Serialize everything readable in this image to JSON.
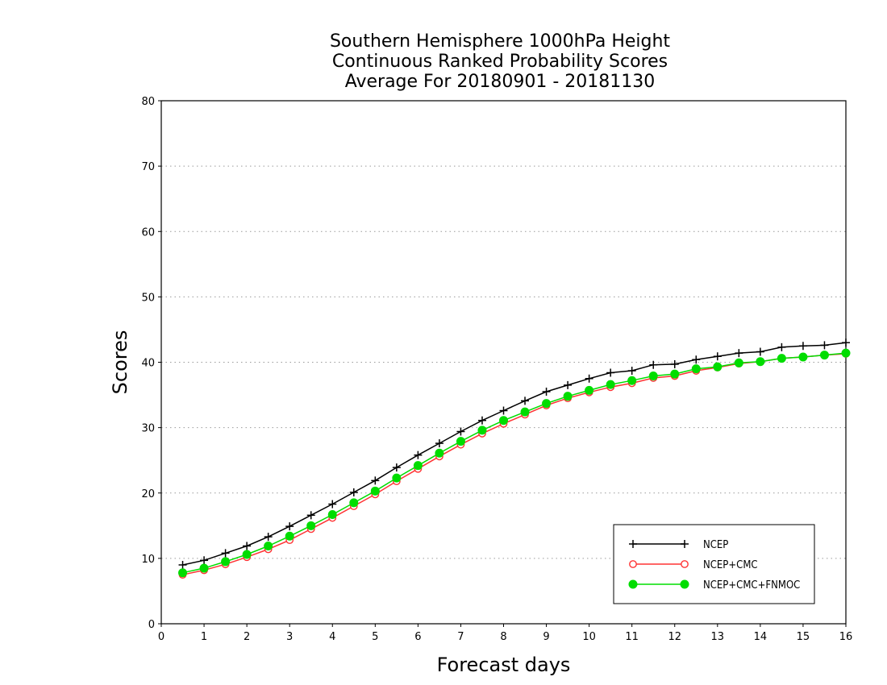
{
  "chart_data": {
    "type": "line",
    "title": [
      "Southern Hemisphere 1000hPa Height",
      "Continuous Ranked Probability Scores",
      "Average For 20180901 - 20181130"
    ],
    "xlabel": "Forecast days",
    "ylabel": "Scores",
    "xlim": [
      0,
      16
    ],
    "ylim": [
      0,
      80
    ],
    "xticks": [
      0,
      1,
      2,
      3,
      4,
      5,
      6,
      7,
      8,
      9,
      10,
      11,
      12,
      13,
      14,
      15,
      16
    ],
    "yticks": [
      0,
      10,
      20,
      30,
      40,
      50,
      60,
      70,
      80
    ],
    "grid": "horizontal dotted",
    "legend_position": "bottom-right",
    "x": [
      0.5,
      1,
      1.5,
      2,
      2.5,
      3,
      3.5,
      4,
      4.5,
      5,
      5.5,
      6,
      6.5,
      7,
      7.5,
      8,
      8.5,
      9,
      9.5,
      10,
      10.5,
      11,
      11.5,
      12,
      12.5,
      13,
      13.5,
      14,
      14.5,
      15,
      15.5,
      16
    ],
    "series": [
      {
        "name": "NCEP",
        "color": "#000000",
        "marker": "plus",
        "values": [
          9.0,
          9.7,
          10.8,
          11.9,
          13.3,
          14.9,
          16.6,
          18.3,
          20.1,
          21.9,
          23.9,
          25.8,
          27.6,
          29.4,
          31.1,
          32.6,
          34.1,
          35.5,
          36.5,
          37.5,
          38.4,
          38.7,
          39.6,
          39.7,
          40.4,
          40.9,
          41.4,
          41.6,
          42.3,
          42.5,
          42.6,
          43.0
        ]
      },
      {
        "name": "NCEP+CMC",
        "color": "#ff3333",
        "marker": "open-circle",
        "values": [
          7.5,
          8.2,
          9.1,
          10.2,
          11.4,
          12.8,
          14.5,
          16.2,
          18.0,
          19.8,
          21.8,
          23.7,
          25.6,
          27.4,
          29.1,
          30.6,
          32.0,
          33.4,
          34.5,
          35.4,
          36.2,
          36.8,
          37.6,
          37.9,
          38.7,
          39.2,
          39.8,
          40.1,
          40.6,
          40.8,
          41.1,
          41.3
        ]
      },
      {
        "name": "NCEP+CMC+FNMOC",
        "color": "#00dd00",
        "marker": "filled-circle",
        "values": [
          7.8,
          8.5,
          9.5,
          10.6,
          11.9,
          13.4,
          15.0,
          16.7,
          18.5,
          20.3,
          22.3,
          24.2,
          26.1,
          27.9,
          29.6,
          31.1,
          32.4,
          33.7,
          34.8,
          35.7,
          36.6,
          37.2,
          37.9,
          38.2,
          39.0,
          39.3,
          39.9,
          40.1,
          40.6,
          40.8,
          41.1,
          41.4
        ]
      }
    ]
  }
}
